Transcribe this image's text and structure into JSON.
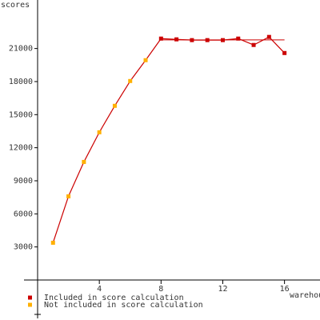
{
  "chart_data": {
    "type": "line",
    "x_label": "warehouses",
    "y_label": "scores",
    "x": [
      1,
      2,
      3,
      4,
      5,
      6,
      7,
      8,
      9,
      10,
      11,
      12,
      13,
      14,
      15,
      16
    ],
    "series": [
      {
        "name": "Included in score calculation",
        "color": "#cc0000",
        "values": [
          null,
          null,
          null,
          null,
          null,
          null,
          null,
          21900,
          21830,
          21760,
          21760,
          21760,
          21900,
          21320,
          22050,
          20590
        ]
      },
      {
        "name": "Not included in score calculation",
        "color": "#ffb000",
        "values": [
          3380,
          7590,
          10710,
          13400,
          15800,
          18050,
          19940,
          null,
          null,
          null,
          null,
          null,
          null,
          null,
          null,
          null
        ]
      }
    ],
    "line_color": "#cc0000",
    "score_line": {
      "value": 21780,
      "x": [
        8,
        16
      ]
    },
    "xlim": [
      0,
      18.3
    ],
    "ylim": [
      0,
      25400
    ],
    "xticks": [
      4,
      8,
      12,
      16
    ],
    "yticks": [
      3000,
      6000,
      9000,
      12000,
      15000,
      18000,
      21000
    ]
  }
}
